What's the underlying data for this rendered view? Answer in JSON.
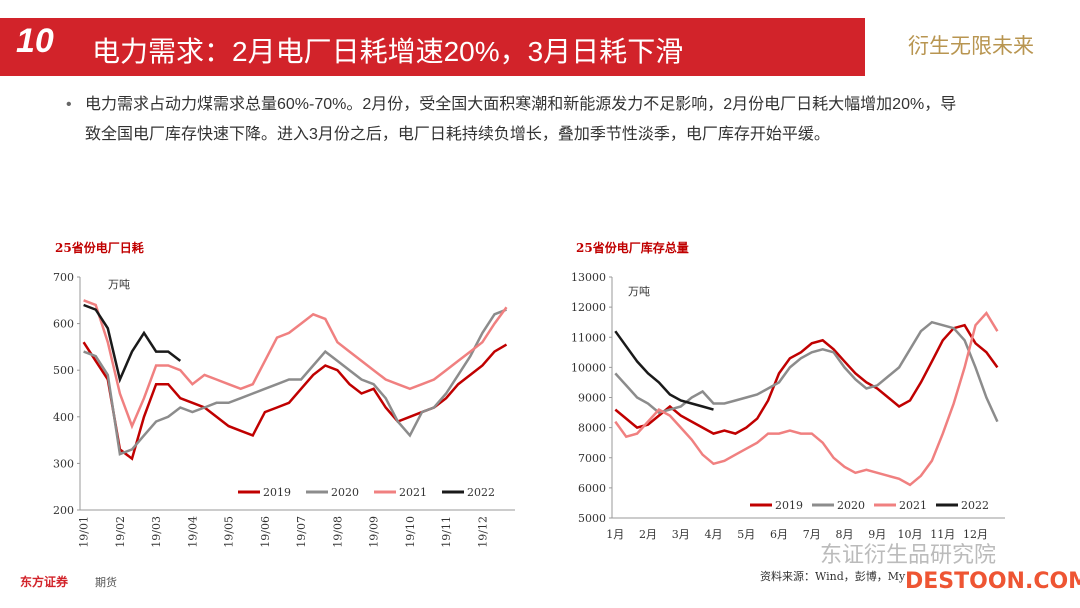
{
  "header": {
    "logo": "10",
    "title": "电力需求：2月电厂日耗增速20%，3月日耗下滑",
    "slogan": "衍生无限未来"
  },
  "bullet": "电力需求占动力煤需求总量60%-70%。2月份，受全国大面积寒潮和新能源发力不足影响，2月份电厂日耗大幅增加20%，导致全国电厂库存快速下降。进入3月份之后，电厂日耗持续负增长，叠加季节性淡季，电厂库存开始平缓。",
  "chart_data": [
    {
      "type": "line",
      "title": "25省份电厂日耗",
      "annotation": "万吨",
      "categories": [
        "19/01",
        null,
        null,
        "19/02",
        null,
        null,
        "19/03",
        null,
        null,
        "19/04",
        null,
        null,
        "19/05",
        null,
        null,
        "19/06",
        null,
        null,
        "19/07",
        null,
        null,
        "19/08",
        null,
        null,
        "19/09",
        null,
        null,
        "19/10",
        null,
        null,
        "19/11",
        null,
        null,
        "19/12",
        null,
        null
      ],
      "ylim": [
        200,
        700
      ],
      "yticks": [
        200,
        300,
        400,
        500,
        600,
        700
      ],
      "series": [
        {
          "name": "2019",
          "color": "#c00000",
          "values": [
            560,
            520,
            480,
            330,
            310,
            400,
            470,
            470,
            440,
            430,
            420,
            400,
            380,
            370,
            360,
            410,
            420,
            430,
            460,
            490,
            510,
            500,
            470,
            450,
            460,
            420,
            390,
            400,
            410,
            420,
            440,
            470,
            490,
            510,
            540,
            555
          ]
        },
        {
          "name": "2020",
          "color": "#8c8c8c",
          "values": [
            540,
            530,
            490,
            320,
            330,
            360,
            390,
            400,
            420,
            410,
            420,
            430,
            430,
            440,
            450,
            460,
            470,
            480,
            480,
            510,
            540,
            520,
            500,
            480,
            470,
            440,
            390,
            360,
            410,
            420,
            450,
            490,
            530,
            580,
            620,
            630
          ]
        },
        {
          "name": "2021",
          "color": "#f08080",
          "values": [
            650,
            640,
            560,
            450,
            380,
            440,
            510,
            510,
            500,
            470,
            490,
            480,
            470,
            460,
            470,
            520,
            570,
            580,
            600,
            620,
            610,
            560,
            540,
            520,
            500,
            480,
            470,
            460,
            470,
            480,
            500,
            520,
            540,
            560,
            600,
            635
          ]
        },
        {
          "name": "2022",
          "color": "#1a1a1a",
          "values": [
            640,
            630,
            590,
            480,
            540,
            580,
            540,
            540,
            520,
            null,
            null,
            null,
            null,
            null,
            null,
            null,
            null,
            null,
            null,
            null,
            null,
            null,
            null,
            null,
            null,
            null,
            null,
            null,
            null,
            null,
            null,
            null,
            null,
            null,
            null,
            null
          ]
        }
      ]
    },
    {
      "type": "line",
      "title": "25省份电厂库存总量",
      "annotation": "万吨",
      "categories": [
        "1月",
        null,
        null,
        "2月",
        null,
        null,
        "3月",
        null,
        null,
        "4月",
        null,
        null,
        "5月",
        null,
        null,
        "6月",
        null,
        null,
        "7月",
        null,
        null,
        "8月",
        null,
        null,
        "9月",
        null,
        null,
        "10月",
        null,
        null,
        "11月",
        null,
        null,
        "12月",
        null,
        null
      ],
      "ylim": [
        5000,
        13000
      ],
      "yticks": [
        5000,
        6000,
        7000,
        8000,
        9000,
        10000,
        11000,
        12000,
        13000
      ],
      "series": [
        {
          "name": "2019",
          "color": "#c00000",
          "values": [
            8600,
            8300,
            8000,
            8100,
            8400,
            8700,
            8400,
            8200,
            8000,
            7800,
            7900,
            7800,
            8000,
            8300,
            8900,
            9800,
            10300,
            10500,
            10800,
            10900,
            10600,
            10200,
            9800,
            9500,
            9300,
            9000,
            8700,
            8900,
            9500,
            10200,
            10900,
            11300,
            11400,
            10800,
            10500,
            10000
          ]
        },
        {
          "name": "2020",
          "color": "#8c8c8c",
          "values": [
            9800,
            9400,
            9000,
            8800,
            8500,
            8600,
            8700,
            9000,
            9200,
            8800,
            8800,
            8900,
            9000,
            9100,
            9300,
            9500,
            10000,
            10300,
            10500,
            10600,
            10500,
            10000,
            9600,
            9300,
            9400,
            9700,
            10000,
            10600,
            11200,
            11500,
            11400,
            11300,
            10900,
            10000,
            9000,
            8200
          ]
        },
        {
          "name": "2021",
          "color": "#f08080",
          "values": [
            8200,
            7700,
            7800,
            8200,
            8600,
            8400,
            8000,
            7600,
            7100,
            6800,
            6900,
            7100,
            7300,
            7500,
            7800,
            7800,
            7900,
            7800,
            7800,
            7500,
            7000,
            6700,
            6500,
            6600,
            6500,
            6400,
            6300,
            6100,
            6400,
            6900,
            7800,
            8800,
            10000,
            11400,
            11800,
            11200
          ]
        },
        {
          "name": "2022",
          "color": "#1a1a1a",
          "values": [
            11200,
            10700,
            10200,
            9800,
            9500,
            9100,
            8900,
            8800,
            8700,
            8600,
            null,
            null,
            null,
            null,
            null,
            null,
            null,
            null,
            null,
            null,
            null,
            null,
            null,
            null,
            null,
            null,
            null,
            null,
            null,
            null,
            null,
            null,
            null,
            null,
            null,
            null
          ]
        }
      ]
    }
  ],
  "footer": {
    "brand": "东方证券",
    "brand_sub": "期货",
    "source": "资料来源：Wind，彭博，My",
    "watermark": "东证衍生品研究院",
    "watermark_site": "DESTOON.COM"
  }
}
